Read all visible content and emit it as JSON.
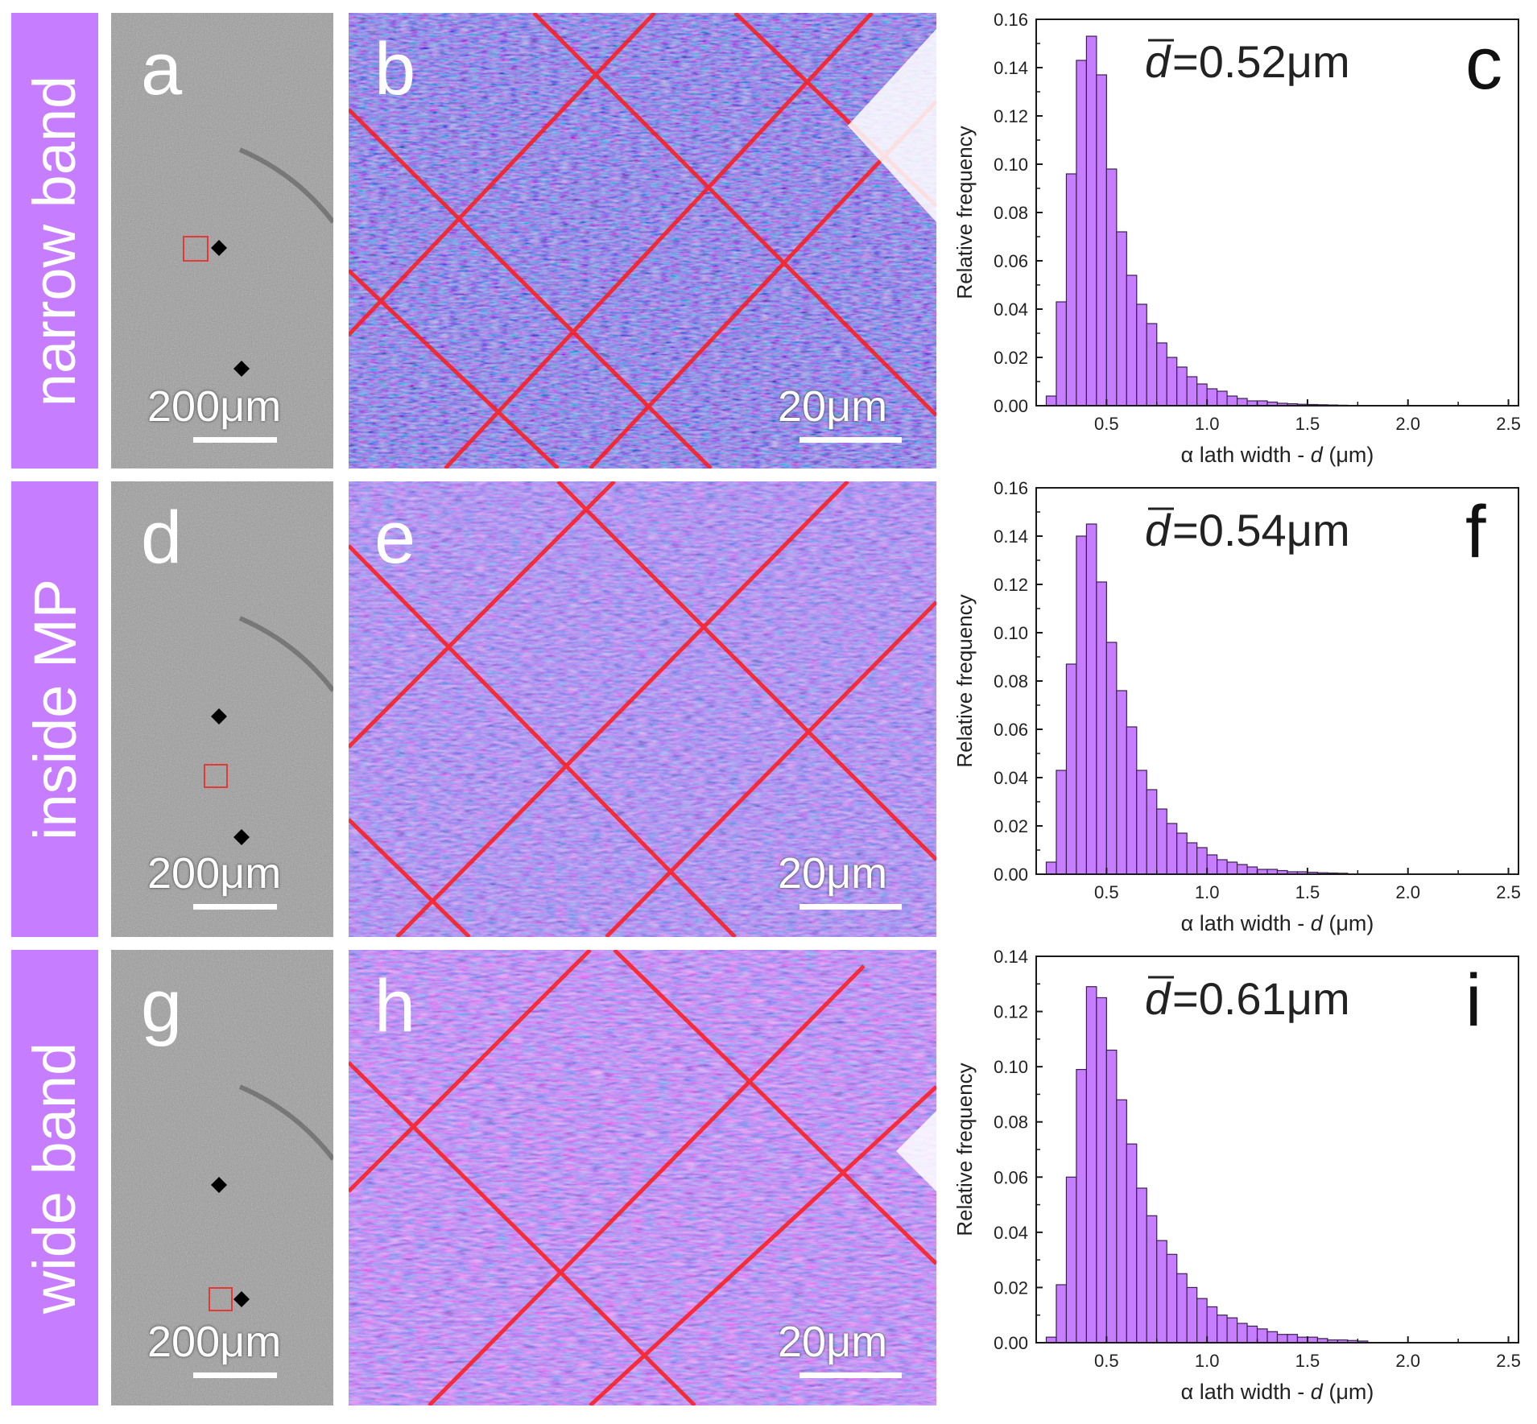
{
  "colors": {
    "label_bg": "#c77dff",
    "bar_fill": "#c77dff",
    "bar_stroke": "#3a2050",
    "marker_red": "#e53935"
  },
  "rows": [
    {
      "row_label": "narrow band",
      "micro_letter": "a",
      "micro_scale": "200μm",
      "ebsd_letter": "b",
      "ebsd_scale": "20μm",
      "chart_letter": "c",
      "mean_text": "=0.52μm"
    },
    {
      "row_label": "inside MP",
      "micro_letter": "d",
      "micro_scale": "200μm",
      "ebsd_letter": "e",
      "ebsd_scale": "20μm",
      "chart_letter": "f",
      "mean_text": "=0.54μm"
    },
    {
      "row_label": "wide band",
      "micro_letter": "g",
      "micro_scale": "200μm",
      "ebsd_letter": "h",
      "ebsd_scale": "20μm",
      "chart_letter": "i",
      "mean_text": "=0.61μm"
    }
  ],
  "chart_data": [
    {
      "type": "bar",
      "title": "c",
      "annotation": "d̄=0.52μm",
      "mean_symbol": "d",
      "xlabel_prefix": "α lath width - ",
      "xlabel_var": "d",
      "xlabel_suffix": " (μm)",
      "ylabel": "Relative frequency",
      "xlim": [
        0.15,
        2.55
      ],
      "ylim": [
        0,
        0.16
      ],
      "xticks": [
        "0.5",
        "1.0",
        "1.5",
        "2.0",
        "2.5"
      ],
      "yticks": [
        "0.00",
        "0.02",
        "0.04",
        "0.06",
        "0.08",
        "0.10",
        "0.12",
        "0.14",
        "0.16"
      ],
      "bin_start": 0.2,
      "bin_width": 0.05,
      "values": [
        0.004,
        0.043,
        0.096,
        0.143,
        0.153,
        0.137,
        0.098,
        0.072,
        0.054,
        0.042,
        0.034,
        0.026,
        0.02,
        0.016,
        0.012,
        0.009,
        0.007,
        0.006,
        0.004,
        0.003,
        0.002,
        0.002,
        0.0015,
        0.001,
        0.0008,
        0.0006,
        0.0005,
        0.0004,
        0.0003,
        0.0002
      ]
    },
    {
      "type": "bar",
      "title": "f",
      "annotation": "d̄=0.54μm",
      "mean_symbol": "d",
      "xlabel_prefix": "α lath width - ",
      "xlabel_var": "d",
      "xlabel_suffix": " (μm)",
      "ylabel": "Relative frequency",
      "xlim": [
        0.15,
        2.55
      ],
      "ylim": [
        0,
        0.16
      ],
      "xticks": [
        "0.5",
        "1.0",
        "1.5",
        "2.0",
        "2.5"
      ],
      "yticks": [
        "0.00",
        "0.02",
        "0.04",
        "0.06",
        "0.08",
        "0.10",
        "0.12",
        "0.14",
        "0.16"
      ],
      "bin_start": 0.2,
      "bin_width": 0.05,
      "values": [
        0.005,
        0.043,
        0.087,
        0.14,
        0.145,
        0.121,
        0.096,
        0.076,
        0.061,
        0.043,
        0.035,
        0.027,
        0.021,
        0.017,
        0.013,
        0.011,
        0.008,
        0.006,
        0.005,
        0.004,
        0.003,
        0.002,
        0.002,
        0.0015,
        0.001,
        0.001,
        0.0008,
        0.0006,
        0.0005,
        0.0004
      ]
    },
    {
      "type": "bar",
      "title": "i",
      "annotation": "d̄=0.61μm",
      "mean_symbol": "d",
      "xlabel_prefix": "α lath width - ",
      "xlabel_var": "d",
      "xlabel_suffix": " (μm)",
      "ylabel": "Relative frequency",
      "xlim": [
        0.15,
        2.55
      ],
      "ylim": [
        0,
        0.14
      ],
      "xticks": [
        "0.5",
        "1.0",
        "1.5",
        "2.0",
        "2.5"
      ],
      "yticks": [
        "0.00",
        "0.02",
        "0.04",
        "0.06",
        "0.08",
        "0.10",
        "0.12",
        "0.14"
      ],
      "bin_start": 0.2,
      "bin_width": 0.05,
      "values": [
        0.002,
        0.021,
        0.06,
        0.099,
        0.129,
        0.125,
        0.106,
        0.088,
        0.072,
        0.056,
        0.046,
        0.037,
        0.032,
        0.025,
        0.02,
        0.016,
        0.013,
        0.01,
        0.009,
        0.007,
        0.006,
        0.005,
        0.004,
        0.003,
        0.003,
        0.002,
        0.002,
        0.0015,
        0.001,
        0.001,
        0.0008,
        0.0006
      ]
    }
  ]
}
